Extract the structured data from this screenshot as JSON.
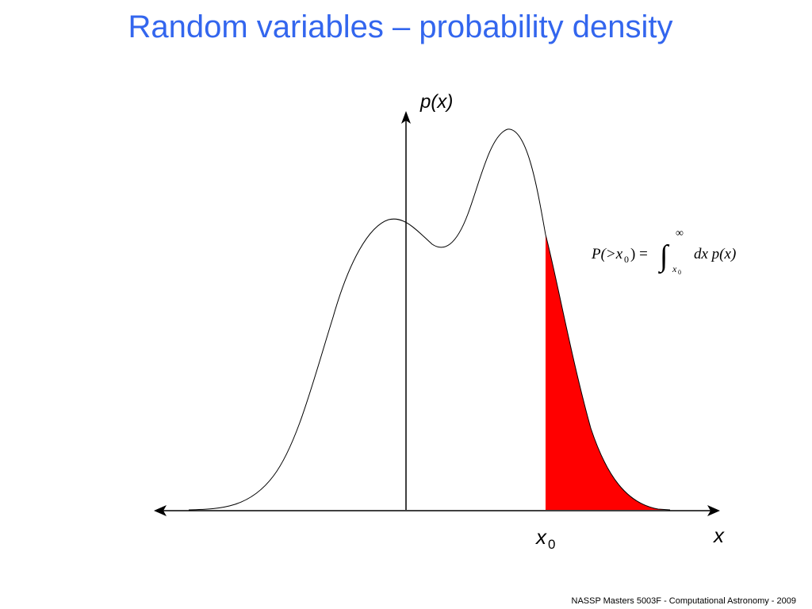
{
  "slide": {
    "title": "Random variables – probability density",
    "footer": "NASSP Masters 5003F - Computational Astronomy - 2009"
  },
  "diagram": {
    "y_axis_label": "p(x)",
    "x_axis_label": "x",
    "threshold_label": "x",
    "threshold_subscript": "0",
    "formula": {
      "lhs": "P(>x",
      "lhs_subscript": "0",
      "lhs_close": ") =",
      "integral_sign": "∫",
      "upper_limit": "∞",
      "lower_limit": "x",
      "lower_limit_subscript": "0",
      "integrand": "dx p(x)"
    },
    "shaded_region_color": "#ff0000",
    "shaded_region": "tail area for x > x0"
  }
}
